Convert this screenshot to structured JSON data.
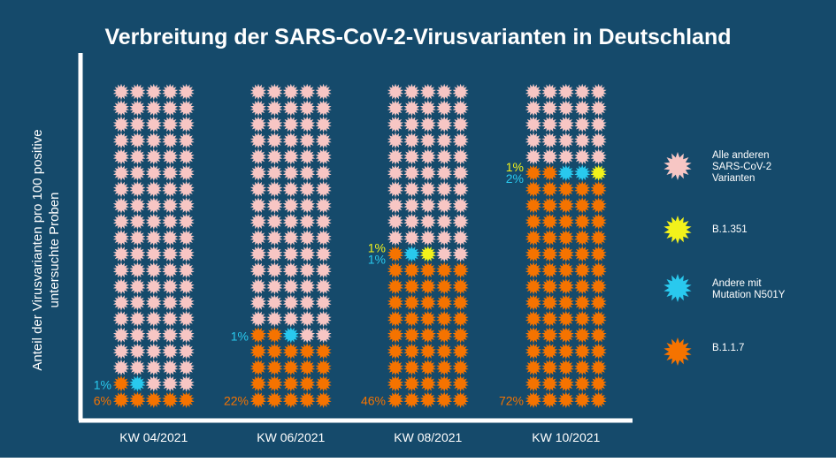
{
  "colors": {
    "background": "#154a6b",
    "other": "#f7c6c4",
    "b1351": "#f2f21b",
    "n501y": "#29c9ee",
    "b117": "#f57300",
    "axis": "#ffffff",
    "label_yellow": "#f2f21b",
    "label_cyan": "#29c9ee",
    "label_orange": "#f57300"
  },
  "chart_data": {
    "type": "waffle",
    "title": "Verbreitung der SARS-CoV-2-Virusvarianten in Deutschland",
    "ylabel": "Anteil der Virusvarianten pro 100 positive untersuchte Proben",
    "units_per_column": 100,
    "grid": {
      "columns": 5,
      "rows": 20
    },
    "categories": [
      "KW 04/2021",
      "KW 06/2021",
      "KW 08/2021",
      "KW 10/2021"
    ],
    "series": [
      {
        "name": "B.1.1.7",
        "color_key": "b117",
        "values": [
          6,
          22,
          46,
          72
        ],
        "labels": [
          "6%",
          "22%",
          "46%",
          "72%"
        ]
      },
      {
        "name": "Andere mit Mutation N501Y",
        "color_key": "n501y",
        "values": [
          1,
          1,
          1,
          2
        ],
        "labels": [
          "1%",
          "1%",
          "1%",
          "2%"
        ]
      },
      {
        "name": "B.1.351",
        "color_key": "b1351",
        "values": [
          0,
          0,
          1,
          1
        ],
        "labels": [
          "",
          "",
          "1%",
          "1%"
        ]
      },
      {
        "name": "Alle anderen SARS-CoV-2 Varianten",
        "color_key": "other",
        "values": [
          93,
          77,
          52,
          25
        ]
      }
    ],
    "legend": [
      {
        "label": "Alle anderen\nSARS-CoV-2\nVarianten",
        "color_key": "other"
      },
      {
        "label": "B.1.351",
        "color_key": "b1351"
      },
      {
        "label": "Andere mit\nMutation N501Y",
        "color_key": "n501y"
      },
      {
        "label": "B.1.1.7",
        "color_key": "b117"
      }
    ],
    "legend_position": "right"
  }
}
